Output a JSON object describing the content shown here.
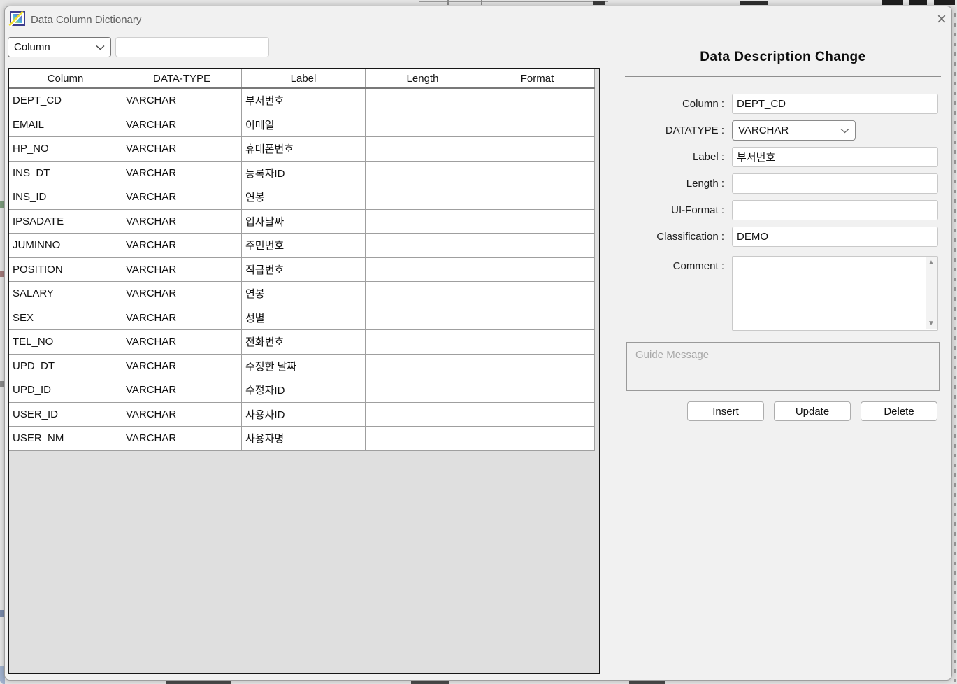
{
  "window": {
    "title": "Data Column Dictionary"
  },
  "icons": {
    "close": "×",
    "scroll_up": "▲",
    "scroll_down": "▼"
  },
  "search": {
    "field_selector_value": "Column",
    "query_value": ""
  },
  "grid": {
    "headers": [
      "Column",
      "DATA-TYPE",
      "Label",
      "Length",
      "Format"
    ],
    "rows": [
      [
        "DEPT_CD",
        "VARCHAR",
        "부서번호",
        "",
        ""
      ],
      [
        "EMAIL",
        "VARCHAR",
        "이메일",
        "",
        ""
      ],
      [
        "HP_NO",
        "VARCHAR",
        "휴대폰번호",
        "",
        ""
      ],
      [
        "INS_DT",
        "VARCHAR",
        "등록자ID",
        "",
        ""
      ],
      [
        "INS_ID",
        "VARCHAR",
        "연봉",
        "",
        ""
      ],
      [
        "IPSADATE",
        "VARCHAR",
        "입사날짜",
        "",
        ""
      ],
      [
        "JUMINNO",
        "VARCHAR",
        "주민번호",
        "",
        ""
      ],
      [
        "POSITION",
        "VARCHAR",
        "직급번호",
        "",
        ""
      ],
      [
        "SALARY",
        "VARCHAR",
        "연봉",
        "",
        ""
      ],
      [
        "SEX",
        "VARCHAR",
        "성별",
        "",
        ""
      ],
      [
        "TEL_NO",
        "VARCHAR",
        "전화번호",
        "",
        ""
      ],
      [
        "UPD_DT",
        "VARCHAR",
        "수정한 날짜",
        "",
        ""
      ],
      [
        "UPD_ID",
        "VARCHAR",
        "수정자ID",
        "",
        ""
      ],
      [
        "USER_ID",
        "VARCHAR",
        "사용자ID",
        "",
        ""
      ],
      [
        "USER_NM",
        "VARCHAR",
        "사용자명",
        "",
        ""
      ]
    ]
  },
  "panel": {
    "title": "Data Description Change",
    "fields": {
      "column": {
        "label": "Column :",
        "value": "DEPT_CD"
      },
      "datatype": {
        "label": "DATATYPE :",
        "value": "VARCHAR"
      },
      "label": {
        "label": "Label :",
        "value": "부서번호"
      },
      "length": {
        "label": "Length :",
        "value": ""
      },
      "ui_format": {
        "label": "UI-Format :",
        "value": ""
      },
      "classification": {
        "label": "Classification :",
        "value": "DEMO"
      },
      "comment": {
        "label": "Comment :",
        "value": ""
      }
    },
    "guide_message": "Guide Message",
    "buttons": {
      "insert": "Insert",
      "update": "Update",
      "delete": "Delete"
    }
  },
  "colors": {
    "window_bg": "#f1f1f1",
    "grid_border": "#161616",
    "grid_line": "#9f9f9f",
    "grid_filler": "#dfdfdf",
    "title_text": "#5f5f5f",
    "separator": "#8f8f8f",
    "guide_text": "#a8a8a8"
  }
}
